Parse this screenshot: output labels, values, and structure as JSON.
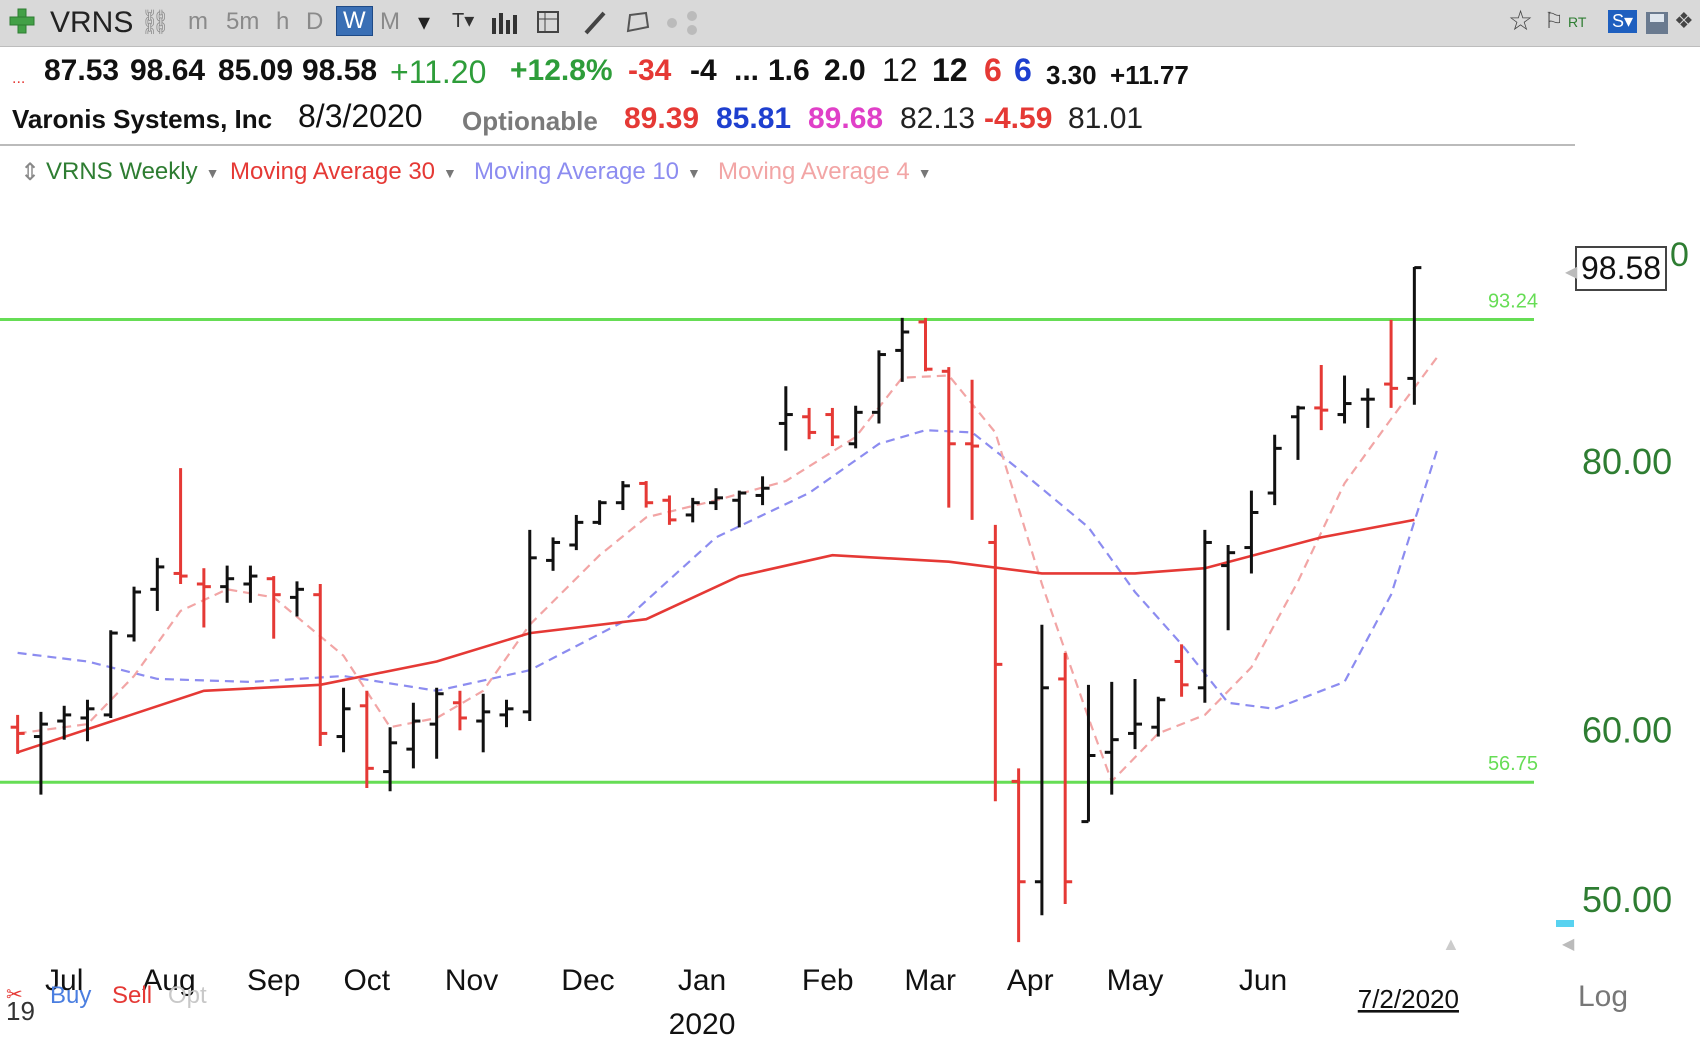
{
  "toolbar": {
    "symbol": "VRNS",
    "intervals": [
      "m",
      "5m",
      "h",
      "D",
      "W",
      "M"
    ],
    "active_interval": "W",
    "colors": {
      "active_bg": "#3a6fb5"
    }
  },
  "quote": {
    "open": "87.53",
    "high": "98.64",
    "low": "85.09",
    "close": "98.58",
    "change": "+11.20",
    "change_pct": "+12.8%",
    "v1": "-34",
    "v2": "-4",
    "ellipsis": "...",
    "v3": "1.6",
    "v4": "2.0",
    "v5": "12",
    "v6": "12",
    "v7": "6",
    "v8": "6",
    "v9": "3.30",
    "v10": "+11.77",
    "dots": "..."
  },
  "info": {
    "company": "Varonis Systems, Inc",
    "date": "8/3/2020",
    "optionable": "Optionable",
    "ma30": "89.39",
    "ma10": "85.81",
    "ma4": "89.68",
    "value": "82.13",
    "diff": "-4.59",
    "value2": "81.01"
  },
  "legend": {
    "series": "VRNS Weekly",
    "ma30": "Moving Average 30",
    "ma10": "Moving Average 10",
    "ma4": "Moving Average 4"
  },
  "footer": {
    "buy": "Buy",
    "sell": "Sell",
    "opt": "Opt",
    "log": "Log",
    "year_fragment": "19"
  },
  "price_label": "98.58",
  "chart_data": {
    "type": "bar",
    "title": "VRNS Weekly",
    "x_months": [
      "Jul",
      "Aug",
      "Sep",
      "Oct",
      "Nov",
      "Dec",
      "Jan",
      "Feb",
      "Mar",
      "Apr",
      "May",
      "Jun"
    ],
    "x_year_label": "2020",
    "last_date_label": "7/2/2020",
    "y_scale": "log",
    "y_ticks": [
      "80.00",
      "60.00",
      "50.00"
    ],
    "y_tick_values": [
      80,
      60,
      50
    ],
    "ylim": [
      47.5,
      106
    ],
    "hlines": [
      {
        "value": 93.24,
        "label": "93.24",
        "color": "#66dd55"
      },
      {
        "value": 56.75,
        "label": "56.75",
        "color": "#66dd55"
      }
    ],
    "colors": {
      "up": "#111111",
      "down": "#e53935",
      "ma30": "#e53935",
      "ma10": "#8c8cf0",
      "ma4": "#f2a5a5",
      "axis_text": "#2e7d32"
    },
    "bars": [
      {
        "o": 60.2,
        "h": 61.0,
        "l": 58.5,
        "c": 59.8
      },
      {
        "o": 59.6,
        "h": 61.2,
        "l": 56.0,
        "c": 60.4
      },
      {
        "o": 60.6,
        "h": 61.6,
        "l": 59.4,
        "c": 61.0
      },
      {
        "o": 60.8,
        "h": 62.0,
        "l": 59.3,
        "c": 61.4
      },
      {
        "o": 61.0,
        "h": 66.8,
        "l": 60.8,
        "c": 66.6
      },
      {
        "o": 66.4,
        "h": 70.0,
        "l": 66.0,
        "c": 69.6
      },
      {
        "o": 69.8,
        "h": 72.2,
        "l": 68.2,
        "c": 71.5
      },
      {
        "o": 71.0,
        "h": 79.5,
        "l": 70.2,
        "c": 70.8
      },
      {
        "o": 70.2,
        "h": 71.4,
        "l": 67.0,
        "c": 70.0
      },
      {
        "o": 70.0,
        "h": 71.6,
        "l": 68.8,
        "c": 70.6
      },
      {
        "o": 70.2,
        "h": 71.6,
        "l": 68.8,
        "c": 70.8
      },
      {
        "o": 70.6,
        "h": 70.8,
        "l": 66.2,
        "c": 69.4
      },
      {
        "o": 69.2,
        "h": 70.4,
        "l": 67.8,
        "c": 69.8
      },
      {
        "o": 69.4,
        "h": 70.2,
        "l": 59.0,
        "c": 59.8
      },
      {
        "o": 59.6,
        "h": 62.8,
        "l": 58.6,
        "c": 61.4
      },
      {
        "o": 61.6,
        "h": 62.6,
        "l": 56.4,
        "c": 57.6
      },
      {
        "o": 57.4,
        "h": 60.2,
        "l": 56.2,
        "c": 59.2
      },
      {
        "o": 58.8,
        "h": 61.8,
        "l": 57.6,
        "c": 60.6
      },
      {
        "o": 60.4,
        "h": 62.8,
        "l": 58.2,
        "c": 62.4
      },
      {
        "o": 61.8,
        "h": 62.6,
        "l": 60.0,
        "c": 60.8
      },
      {
        "o": 60.6,
        "h": 62.4,
        "l": 58.6,
        "c": 61.2
      },
      {
        "o": 61.0,
        "h": 62.0,
        "l": 60.2,
        "c": 61.4
      },
      {
        "o": 61.2,
        "h": 74.4,
        "l": 60.6,
        "c": 72.2
      },
      {
        "o": 72.0,
        "h": 73.8,
        "l": 71.2,
        "c": 73.4
      },
      {
        "o": 73.2,
        "h": 75.6,
        "l": 72.8,
        "c": 75.0
      },
      {
        "o": 75.0,
        "h": 76.8,
        "l": 74.8,
        "c": 76.6
      },
      {
        "o": 76.6,
        "h": 78.4,
        "l": 76.0,
        "c": 78.0
      },
      {
        "o": 78.2,
        "h": 78.4,
        "l": 76.2,
        "c": 76.6
      },
      {
        "o": 76.8,
        "h": 77.2,
        "l": 74.8,
        "c": 75.2
      },
      {
        "o": 75.6,
        "h": 77.0,
        "l": 75.0,
        "c": 76.6
      },
      {
        "o": 76.6,
        "h": 77.8,
        "l": 76.0,
        "c": 77.0
      },
      {
        "o": 76.8,
        "h": 77.6,
        "l": 74.6,
        "c": 77.4
      },
      {
        "o": 77.2,
        "h": 78.8,
        "l": 76.4,
        "c": 77.8
      },
      {
        "o": 83.4,
        "h": 86.8,
        "l": 81.0,
        "c": 84.2
      },
      {
        "o": 84.0,
        "h": 84.8,
        "l": 82.0,
        "c": 82.6
      },
      {
        "o": 84.2,
        "h": 84.8,
        "l": 81.4,
        "c": 82.2
      },
      {
        "o": 81.6,
        "h": 85.0,
        "l": 81.2,
        "c": 84.4
      },
      {
        "o": 84.4,
        "h": 90.2,
        "l": 83.4,
        "c": 89.8
      },
      {
        "o": 90.2,
        "h": 93.4,
        "l": 87.2,
        "c": 92.0
      },
      {
        "o": 93.0,
        "h": 93.4,
        "l": 88.2,
        "c": 88.4
      },
      {
        "o": 88.2,
        "h": 88.6,
        "l": 76.2,
        "c": 81.6
      },
      {
        "o": 81.6,
        "h": 87.4,
        "l": 75.2,
        "c": 81.4
      },
      {
        "o": 73.4,
        "h": 74.8,
        "l": 55.6,
        "c": 64.4
      },
      {
        "o": 56.8,
        "h": 57.6,
        "l": 47.8,
        "c": 51.0
      },
      {
        "o": 51.0,
        "h": 67.2,
        "l": 49.2,
        "c": 62.8
      },
      {
        "o": 63.4,
        "h": 65.2,
        "l": 49.8,
        "c": 51.0
      },
      {
        "o": 54.4,
        "h": 63.0,
        "l": 54.4,
        "c": 58.4
      },
      {
        "o": 58.6,
        "h": 63.2,
        "l": 56.0,
        "c": 59.4
      },
      {
        "o": 59.8,
        "h": 63.4,
        "l": 58.8,
        "c": 60.4
      },
      {
        "o": 60.2,
        "h": 62.2,
        "l": 59.6,
        "c": 62.0
      },
      {
        "o": 64.6,
        "h": 65.8,
        "l": 62.2,
        "c": 63.0
      },
      {
        "o": 62.8,
        "h": 74.4,
        "l": 61.8,
        "c": 73.4
      },
      {
        "o": 71.6,
        "h": 73.2,
        "l": 66.8,
        "c": 72.6
      },
      {
        "o": 73.0,
        "h": 77.6,
        "l": 71.0,
        "c": 75.8
      },
      {
        "o": 77.4,
        "h": 82.4,
        "l": 76.4,
        "c": 81.2
      },
      {
        "o": 84.0,
        "h": 85.0,
        "l": 80.2,
        "c": 84.8
      },
      {
        "o": 84.8,
        "h": 88.8,
        "l": 82.8,
        "c": 84.6
      },
      {
        "o": 84.2,
        "h": 87.8,
        "l": 83.4,
        "c": 85.2
      },
      {
        "o": 85.6,
        "h": 86.6,
        "l": 83.0,
        "c": 85.6
      },
      {
        "o": 87.0,
        "h": 93.2,
        "l": 84.8,
        "c": 86.6
      },
      {
        "o": 87.53,
        "h": 98.64,
        "l": 85.09,
        "c": 98.58
      }
    ],
    "ma30": [
      [
        0,
        58.6
      ],
      [
        8,
        62.6
      ],
      [
        13,
        63.0
      ],
      [
        18,
        64.6
      ],
      [
        22,
        66.6
      ],
      [
        27,
        67.6
      ],
      [
        31,
        70.8
      ],
      [
        35,
        72.4
      ],
      [
        40,
        71.9
      ],
      [
        44,
        71.0
      ],
      [
        48,
        71.0
      ],
      [
        51,
        71.4
      ],
      [
        56,
        73.8
      ],
      [
        60,
        75.2
      ]
    ],
    "ma10": [
      [
        0,
        65.2
      ],
      [
        3,
        64.6
      ],
      [
        6,
        63.4
      ],
      [
        10,
        63.2
      ],
      [
        14,
        63.6
      ],
      [
        18,
        62.6
      ],
      [
        22,
        64.0
      ],
      [
        26,
        67.4
      ],
      [
        30,
        73.8
      ],
      [
        34,
        77.4
      ],
      [
        37,
        81.6
      ],
      [
        39,
        82.8
      ],
      [
        41,
        82.6
      ],
      [
        43,
        79.4
      ],
      [
        46,
        74.6
      ],
      [
        48,
        69.6
      ],
      [
        50,
        65.8
      ],
      [
        52,
        61.8
      ],
      [
        54,
        61.4
      ],
      [
        57,
        63.2
      ],
      [
        59,
        69.4
      ],
      [
        61,
        81.2
      ]
    ],
    "ma4": [
      [
        0,
        59.8
      ],
      [
        3,
        60.4
      ],
      [
        5,
        63.6
      ],
      [
        7,
        68.2
      ],
      [
        9,
        69.8
      ],
      [
        11,
        69.2
      ],
      [
        14,
        65.0
      ],
      [
        16,
        60.2
      ],
      [
        18,
        60.8
      ],
      [
        20,
        62.6
      ],
      [
        22,
        67.2
      ],
      [
        25,
        72.4
      ],
      [
        27,
        75.4
      ],
      [
        30,
        76.8
      ],
      [
        33,
        78.4
      ],
      [
        36,
        82.2
      ],
      [
        38,
        87.6
      ],
      [
        40,
        87.8
      ],
      [
        42,
        82.6
      ],
      [
        44,
        70.2
      ],
      [
        46,
        60.8
      ],
      [
        47,
        56.8
      ],
      [
        49,
        59.8
      ],
      [
        51,
        61.0
      ],
      [
        53,
        64.2
      ],
      [
        55,
        70.4
      ],
      [
        57,
        78.2
      ],
      [
        59,
        83.8
      ],
      [
        61,
        89.6
      ]
    ]
  }
}
